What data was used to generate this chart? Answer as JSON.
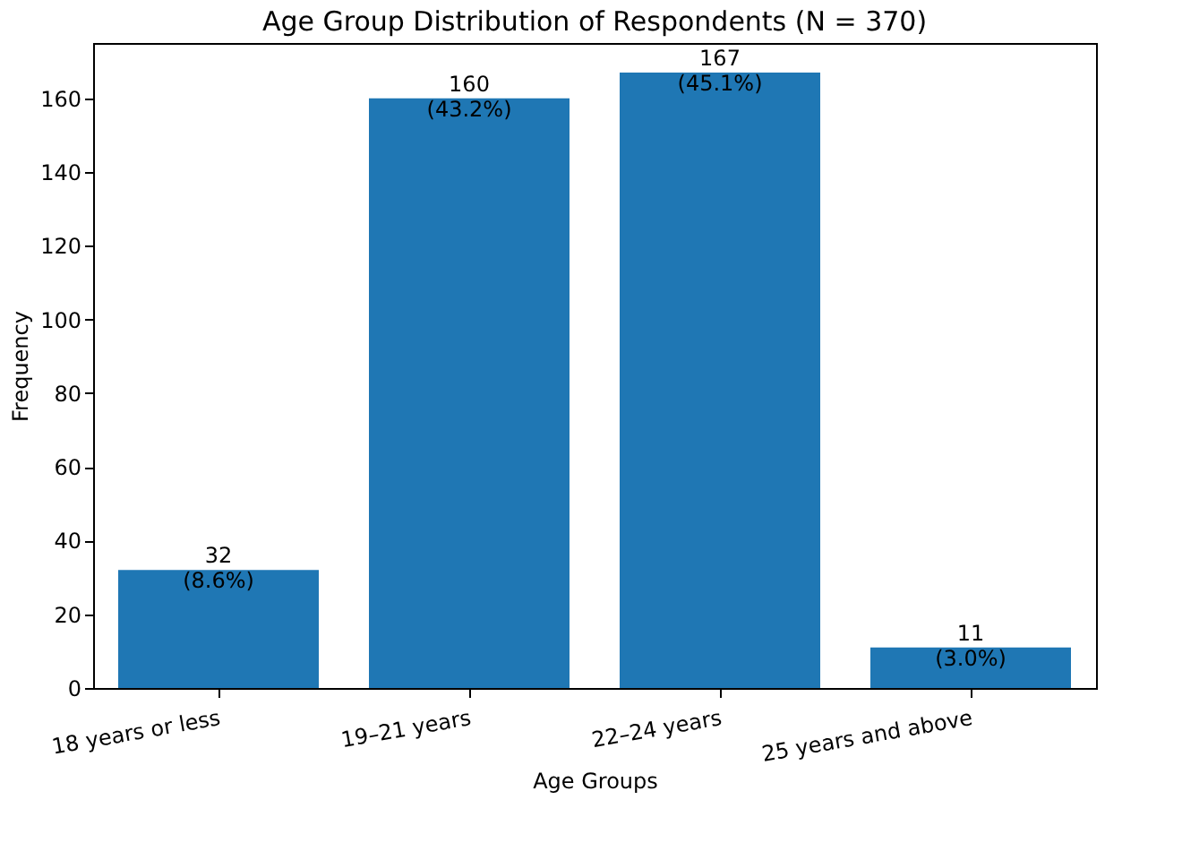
{
  "chart_data": {
    "type": "bar",
    "title": "Age Group Distribution of Respondents (N = 370)",
    "xlabel": "Age Groups",
    "ylabel": "Frequency",
    "categories": [
      "18 years or less",
      "19–21 years",
      "22–24 years",
      "25 years and above"
    ],
    "values": [
      32,
      160,
      167,
      11
    ],
    "value_labels": [
      "32\n(8.6%)",
      "160\n(43.2%)",
      "167\n(45.1%)",
      "11\n(3.0%)"
    ],
    "color": "#1f77b4",
    "ylim": [
      0,
      175
    ],
    "yticks": [
      0,
      20,
      40,
      60,
      80,
      100,
      120,
      140,
      160
    ],
    "grid": false
  }
}
